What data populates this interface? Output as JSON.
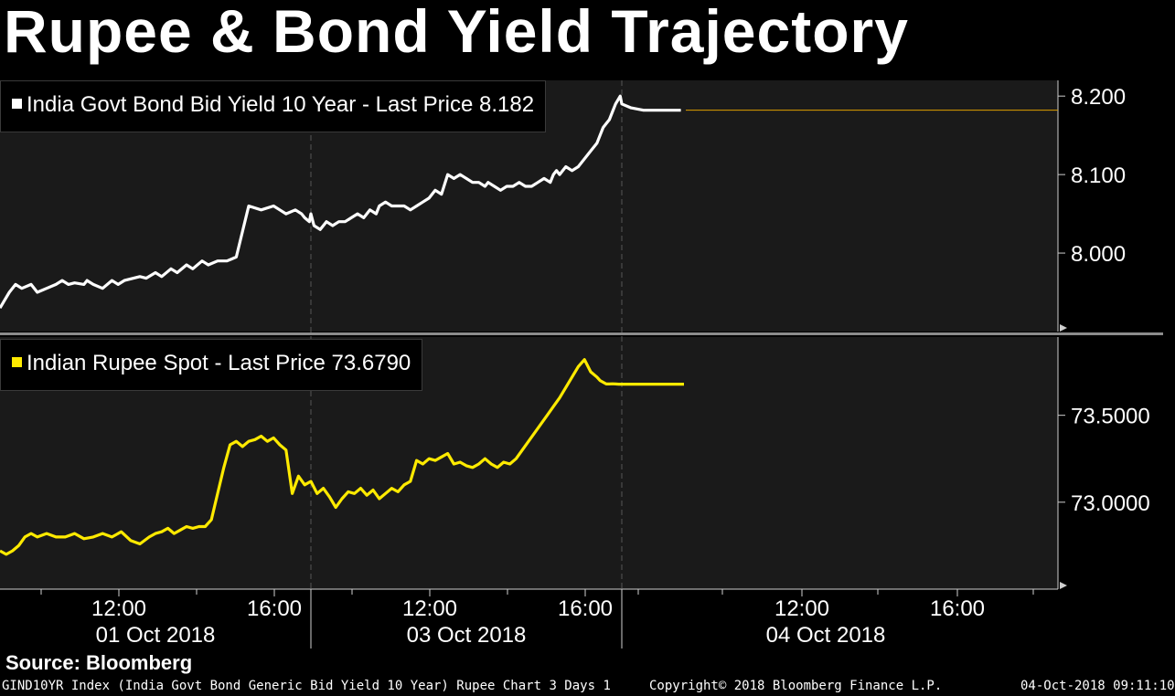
{
  "title": "Rupee & Bond Yield Trajectory",
  "source": "Source: Bloomberg",
  "footer": {
    "left": "GIND10YR Index (India Govt Bond Generic Bid Yield 10 Year) Rupee Chart 3 Days 1",
    "center": "Copyright© 2018 Bloomberg Finance L.P.",
    "right": "04-Oct-2018 09:11:10"
  },
  "colors": {
    "bond": "#ffffff",
    "rupee": "#ffea00",
    "last_price_line": "#e0a000",
    "panel_bg": "#1a1a1a"
  },
  "chart_data": [
    {
      "type": "line",
      "legend": "India Govt Bond Bid Yield 10 Year - Last Price 8.182",
      "last_price": 8.182,
      "ytick_labels": [
        "8.200",
        "8.100",
        "8.000"
      ],
      "ylim": [
        7.9,
        8.22
      ],
      "series": [
        {
          "x": [
            0,
            1.5,
            3,
            5,
            7,
            10,
            12,
            15,
            18,
            20,
            22,
            24,
            27,
            28,
            30,
            33,
            36,
            38,
            40,
            45,
            47,
            50,
            52,
            55,
            57,
            60,
            62,
            65,
            67,
            70,
            73,
            76,
            80,
            84,
            88,
            90,
            92,
            95,
            97,
            98,
            99.5,
            100,
            101,
            103,
            105,
            107,
            109,
            111,
            113,
            115,
            117,
            119,
            121,
            122,
            124,
            126,
            128,
            130,
            132,
            134,
            136,
            138,
            140,
            142,
            144,
            146,
            148,
            150,
            152,
            154,
            156,
            157,
            159,
            161,
            163,
            165,
            167,
            169,
            171,
            173,
            175,
            177,
            178,
            179,
            180,
            182,
            184,
            186,
            188,
            190,
            192,
            193,
            194,
            195,
            196,
            197,
            198,
            199.5,
            200,
            203,
            207,
            211,
            215,
            219,
            222
          ],
          "y": [
            7.93,
            7.94,
            7.95,
            7.96,
            7.955,
            7.96,
            7.95,
            7.955,
            7.96,
            7.965,
            7.96,
            7.962,
            7.96,
            7.965,
            7.96,
            7.955,
            7.965,
            7.96,
            7.965,
            7.97,
            7.968,
            7.975,
            7.97,
            7.98,
            7.975,
            7.985,
            7.98,
            7.99,
            7.985,
            7.99,
            7.99,
            7.995,
            8.06,
            8.055,
            8.06,
            8.055,
            8.05,
            8.055,
            8.05,
            8.045,
            8.04,
            8.05,
            8.035,
            8.03,
            8.04,
            8.035,
            8.04,
            8.04,
            8.045,
            8.05,
            8.045,
            8.055,
            8.05,
            8.06,
            8.065,
            8.06,
            8.06,
            8.06,
            8.055,
            8.06,
            8.065,
            8.07,
            8.08,
            8.075,
            8.1,
            8.095,
            8.1,
            8.095,
            8.09,
            8.09,
            8.085,
            8.09,
            8.085,
            8.08,
            8.085,
            8.085,
            8.09,
            8.085,
            8.085,
            8.09,
            8.095,
            8.09,
            8.1,
            8.105,
            8.1,
            8.11,
            8.105,
            8.11,
            8.12,
            8.13,
            8.14,
            8.15,
            8.16,
            8.165,
            8.17,
            8.18,
            8.19,
            8.2,
            8.19,
            8.185,
            8.182,
            8.182,
            8.182,
            8.182,
            8.182
          ]
        }
      ]
    },
    {
      "type": "line",
      "legend": "Indian Rupee Spot - Last Price 73.6790",
      "last_price": 73.679,
      "ytick_labels": [
        "73.5000",
        "73.0000"
      ],
      "ylim": [
        72.5,
        73.95
      ],
      "series": [
        {
          "x": [
            0,
            2,
            4,
            6,
            8,
            10,
            12,
            15,
            18,
            21,
            24,
            27,
            30,
            33,
            36,
            39,
            42,
            45,
            48,
            50,
            52,
            54,
            56,
            58,
            60,
            62,
            64,
            66,
            68,
            70,
            72,
            74,
            76,
            78,
            80,
            82,
            84,
            86,
            88,
            90,
            92,
            94,
            96,
            98,
            100,
            102,
            104,
            106,
            108,
            110,
            112,
            114,
            116,
            118,
            120,
            122,
            124,
            126,
            128,
            130,
            132,
            134,
            136,
            138,
            140,
            142,
            144,
            146,
            148,
            150,
            152,
            154,
            156,
            158,
            160,
            162,
            164,
            166,
            168,
            170,
            172,
            174,
            176,
            178,
            180,
            182,
            184,
            186,
            188,
            190,
            192,
            193,
            194,
            195,
            196,
            197,
            198,
            199,
            200,
            205,
            210,
            215,
            220
          ],
          "y": [
            72.72,
            72.7,
            72.72,
            72.75,
            72.8,
            72.82,
            72.8,
            72.82,
            72.8,
            72.8,
            72.82,
            72.79,
            72.8,
            72.82,
            72.8,
            72.83,
            72.78,
            72.76,
            72.8,
            72.82,
            72.83,
            72.85,
            72.82,
            72.84,
            72.86,
            72.85,
            72.86,
            72.86,
            72.9,
            73.05,
            73.2,
            73.33,
            73.35,
            73.32,
            73.35,
            73.36,
            73.38,
            73.35,
            73.37,
            73.33,
            73.3,
            73.05,
            73.15,
            73.1,
            73.12,
            73.05,
            73.08,
            73.03,
            72.97,
            73.02,
            73.06,
            73.05,
            73.08,
            73.04,
            73.07,
            73.02,
            73.05,
            73.08,
            73.06,
            73.1,
            73.12,
            73.24,
            73.22,
            73.25,
            73.24,
            73.26,
            73.28,
            73.22,
            73.23,
            73.21,
            73.2,
            73.22,
            73.25,
            73.22,
            73.2,
            73.23,
            73.22,
            73.25,
            73.3,
            73.35,
            73.4,
            73.45,
            73.5,
            73.55,
            73.6,
            73.66,
            73.72,
            73.78,
            73.82,
            73.75,
            73.72,
            73.7,
            73.69,
            73.68,
            73.68,
            73.681,
            73.68,
            73.679,
            73.679,
            73.679,
            73.679,
            73.679,
            73.679
          ]
        }
      ]
    }
  ],
  "xaxis": {
    "time_labels": [
      "12:00",
      "16:00",
      "12:00",
      "16:00",
      "12:00",
      "16:00"
    ],
    "date_labels": [
      "01 Oct 2018",
      "03 Oct 2018",
      "04 Oct 2018"
    ]
  }
}
